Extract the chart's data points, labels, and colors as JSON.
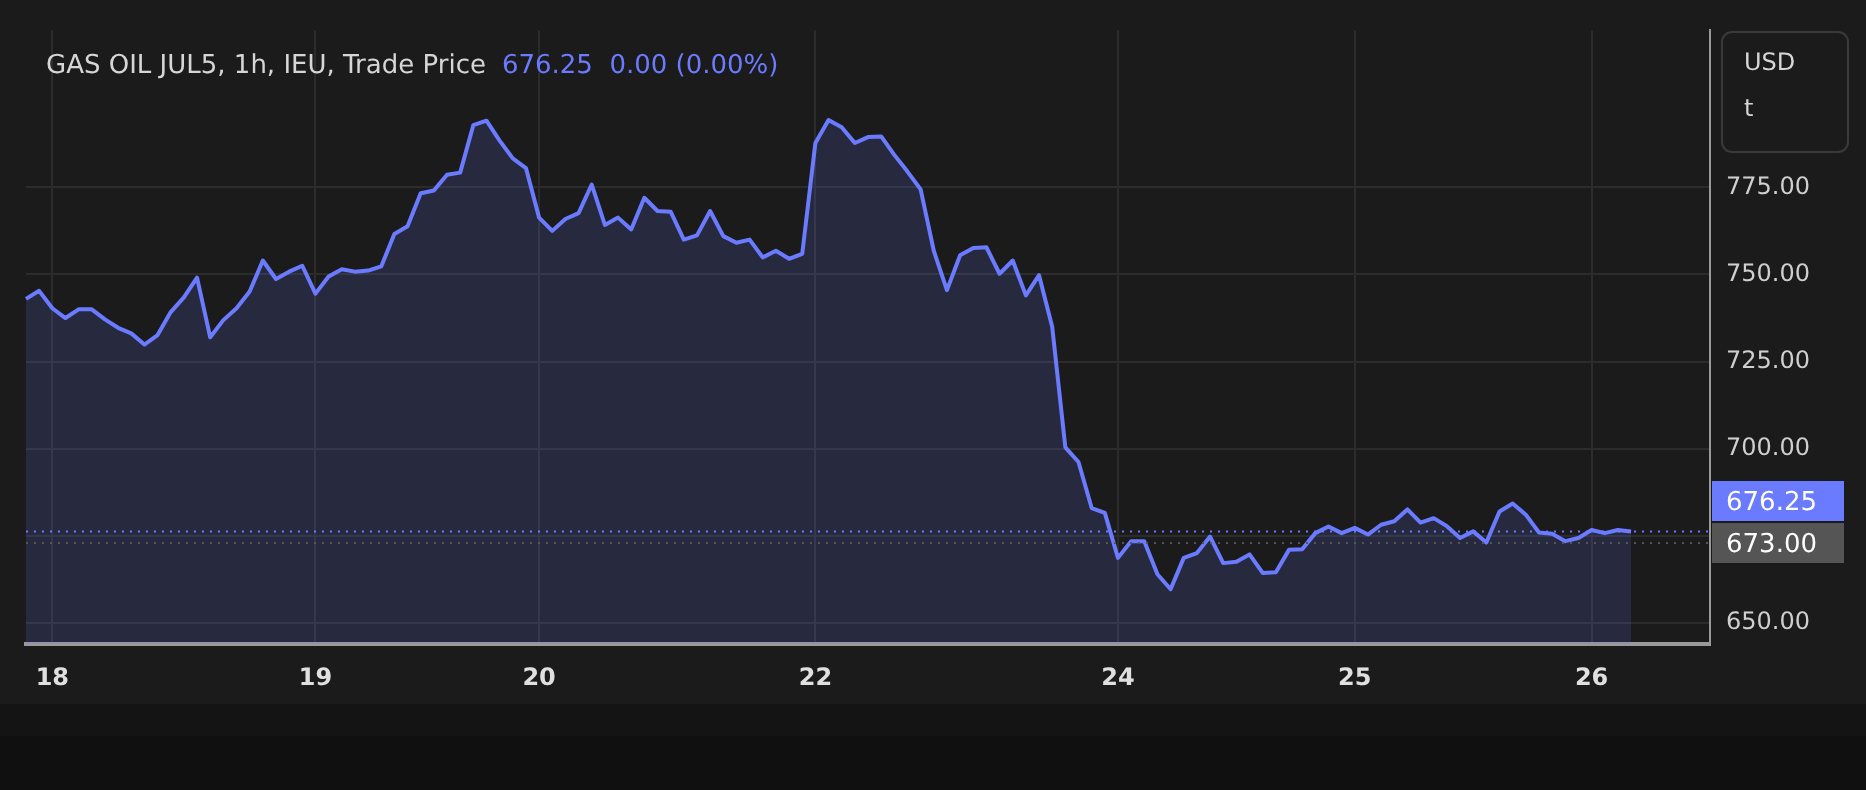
{
  "chart_data": {
    "type": "area",
    "title": "GAS OIL JUL5, 1h, IEU, Trade Price",
    "subtitle": "676.25  0.00 (0.00%)",
    "annotations": [
      "USD",
      "t"
    ],
    "categories": [
      null,
      null,
      "18",
      null,
      null,
      null,
      null,
      null,
      null,
      null,
      null,
      null,
      null,
      null,
      null,
      null,
      null,
      null,
      null,
      null,
      null,
      null,
      "19",
      null,
      null,
      null,
      null,
      null,
      null,
      null,
      null,
      null,
      null,
      null,
      null,
      null,
      null,
      null,
      null,
      "20",
      null,
      null,
      null,
      null,
      null,
      null,
      null,
      null,
      null,
      null,
      null,
      null,
      null,
      null,
      null,
      null,
      null,
      null,
      null,
      null,
      "22",
      null,
      null,
      null,
      null,
      null,
      null,
      null,
      null,
      null,
      null,
      null,
      null,
      null,
      null,
      null,
      null,
      null,
      null,
      null,
      null,
      null,
      null,
      "24",
      null,
      null,
      null,
      null,
      null,
      null,
      null,
      null,
      null,
      null,
      null,
      null,
      null,
      null,
      null,
      null,
      null,
      "25",
      null,
      null,
      null,
      null,
      null,
      null,
      null,
      null,
      null,
      null,
      null,
      null,
      null,
      null,
      null,
      null,
      null,
      "26",
      null,
      null,
      null,
      null,
      null,
      null,
      null,
      null,
      null
    ],
    "series": [
      {
        "color": "#6b7bff",
        "values": [
          743,
          745.3,
          740.3,
          737.5,
          740,
          740,
          737.1,
          734.7,
          733.1,
          729.9,
          732.6,
          739.2,
          743.4,
          749.1,
          732,
          736.9,
          740.3,
          745.1,
          754,
          748.7,
          750.8,
          752.5,
          744.5,
          749.4,
          751.5,
          750.8,
          751.1,
          752.3,
          761.6,
          763.8,
          773.3,
          774.1,
          778.6,
          779.2,
          792.8,
          794.1,
          788.4,
          783.3,
          780.5,
          766.3,
          762.5,
          765.9,
          767.6,
          775.8,
          764.2,
          766.3,
          762.9,
          772,
          768.2,
          768,
          760,
          761.2,
          768.2,
          761,
          759.1,
          760,
          754.9,
          756.8,
          754.5,
          755.9,
          787.7,
          794.3,
          792.2,
          787.7,
          789.4,
          789.6,
          784.3,
          779.5,
          774.4,
          756.8,
          745.5,
          755.5,
          757.6,
          757.8,
          750.2,
          754,
          744,
          749.8,
          735,
          700.4,
          696.2,
          683,
          681.6,
          668.7,
          673.5,
          673.5,
          664,
          659.7,
          668.7,
          670.1,
          674.8,
          667.2,
          667.6,
          669.7,
          664.4,
          664.6,
          671,
          671.2,
          675.8,
          677.7,
          675.8,
          677.3,
          675.4,
          678.2,
          679.2,
          682.6,
          678.8,
          680.1,
          677.8,
          674.4,
          676.3,
          673.1,
          682,
          684.3,
          681.1,
          676,
          675.6,
          673.5,
          674.4,
          676.7,
          675.8,
          676.7,
          676.3,
          null,
          null,
          null,
          null,
          null,
          null
        ]
      }
    ],
    "ylim": [
      644,
      820
    ],
    "yticks": [
      {
        "value": 650,
        "label": "650.00"
      },
      {
        "value": 675,
        "label": null
      },
      {
        "value": 700,
        "label": "700.00"
      },
      {
        "value": 725,
        "label": "725.00"
      },
      {
        "value": 750,
        "label": "750.00"
      },
      {
        "value": 775,
        "label": "775.00"
      }
    ],
    "ref_lines": [
      {
        "axis": "y",
        "value": 676.25,
        "label": "676.25",
        "color": "#6b7bff"
      },
      {
        "axis": "y",
        "value": 673,
        "label": "673.00",
        "color": "#555555"
      }
    ],
    "line_style": "solid",
    "grid": true,
    "legend": false
  }
}
